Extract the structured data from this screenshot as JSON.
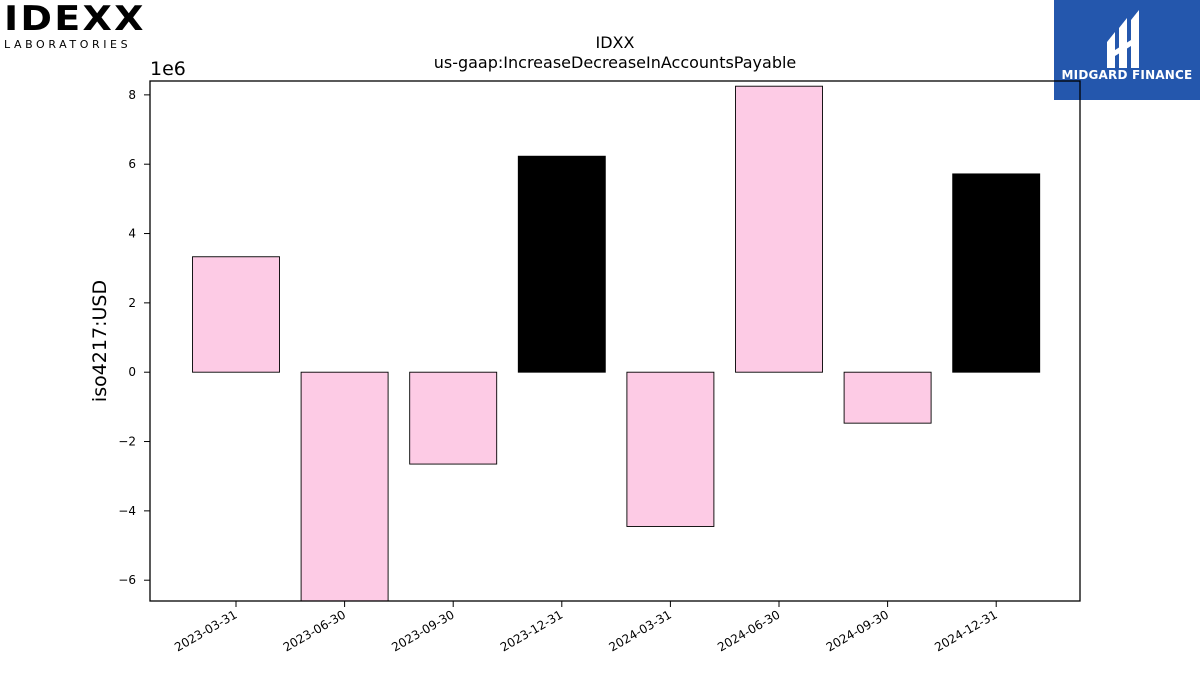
{
  "logos": {
    "left": {
      "mark": "IDEXX",
      "sub": "LABORATORIES"
    },
    "right": {
      "brand": "MIDGARD FINANCE"
    }
  },
  "colors": {
    "bar_default": "#fdcbe5",
    "bar_highlight": "#000000",
    "brand_blue": "#2457ad"
  },
  "chart_data": {
    "type": "bar",
    "title": "IDXX",
    "subtitle": "us-gaap:IncreaseDecreaseInAccountsPayable",
    "xlabel": "",
    "ylabel": "iso4217:USD",
    "offset_label": "1e6",
    "scale": 1000000,
    "categories": [
      "2023-03-31",
      "2023-06-30",
      "2023-09-30",
      "2023-12-31",
      "2024-03-31",
      "2024-06-30",
      "2024-09-30",
      "2024-12-31"
    ],
    "values": [
      3330000,
      -6600000,
      -2650000,
      6230000,
      -4450000,
      8250000,
      -1470000,
      5720000
    ],
    "highlight": [
      false,
      false,
      false,
      true,
      false,
      false,
      false,
      true
    ],
    "ylim": [
      -6600000,
      8400000
    ],
    "yticks": [
      -6,
      -4,
      -2,
      0,
      2,
      4,
      6,
      8
    ],
    "ytick_labels": [
      "−6",
      "−4",
      "−2",
      "0",
      "2",
      "4",
      "6",
      "8"
    ],
    "grid": false,
    "legend": "none"
  }
}
